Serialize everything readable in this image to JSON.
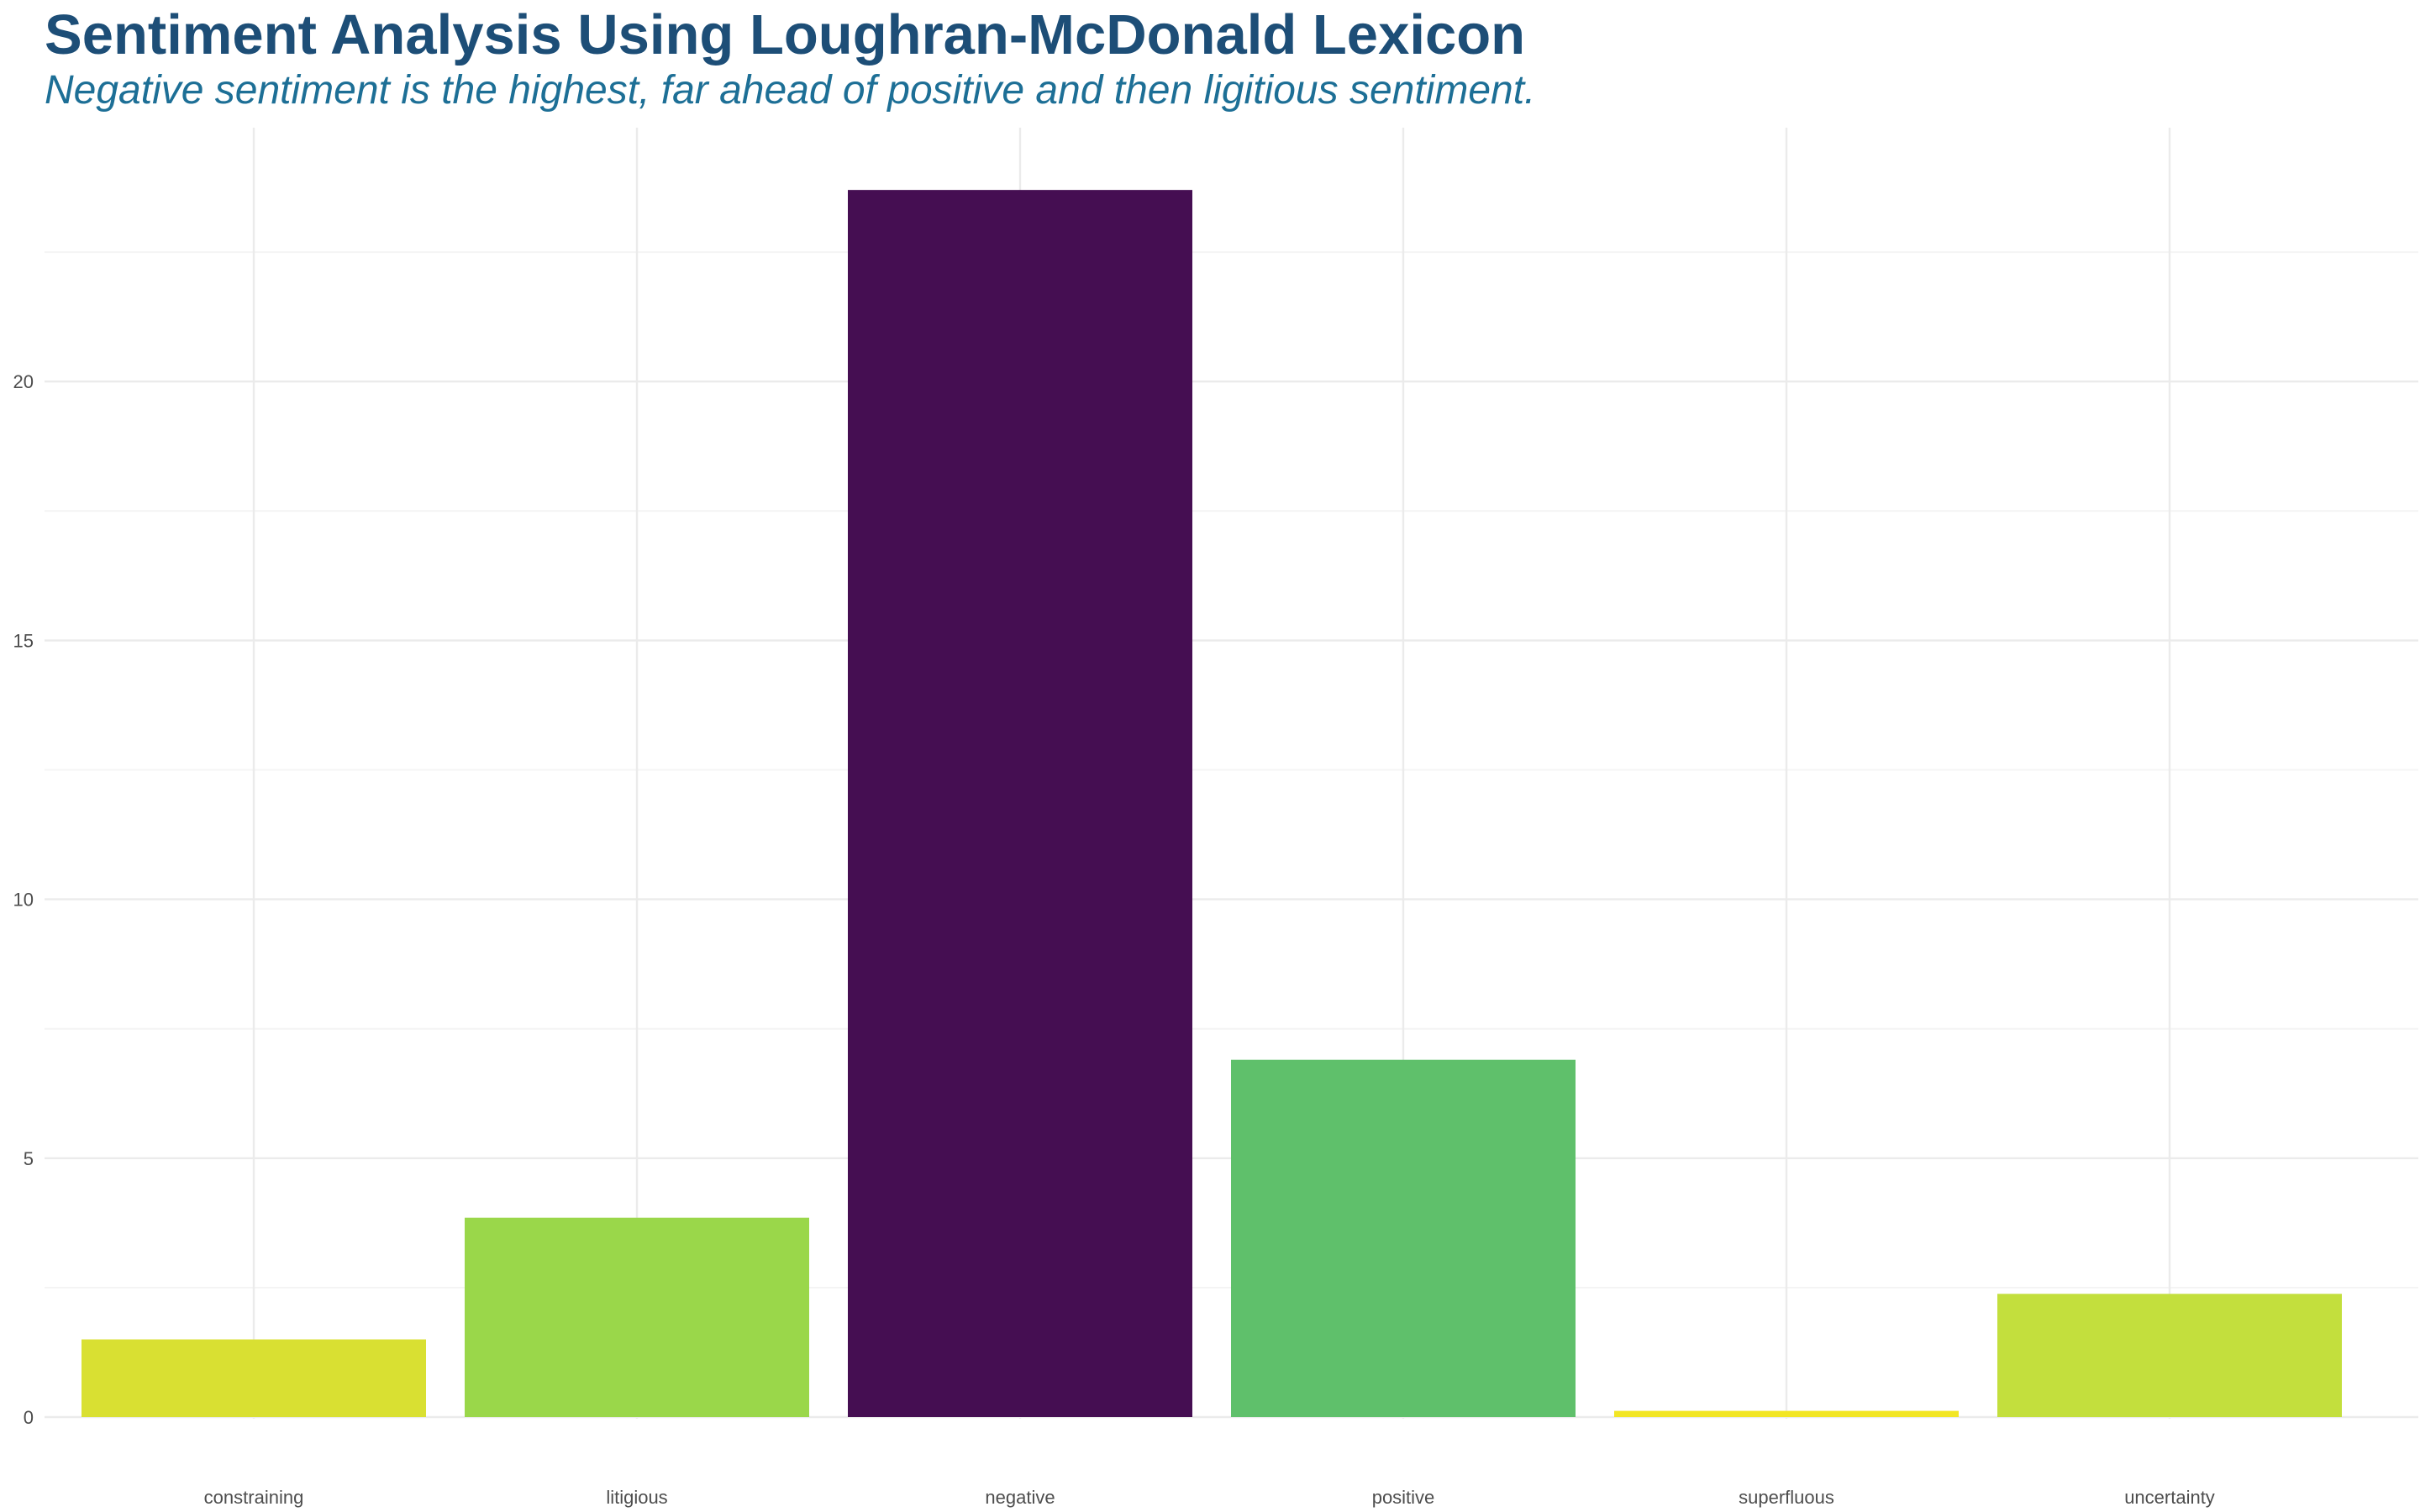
{
  "chart_data": {
    "type": "bar",
    "title": "Sentiment Analysis Using Loughran-McDonald Lexicon",
    "subtitle": "Negative sentiment is the highest, far ahead of positive and then ligitious sentiment.",
    "xlabel": "",
    "ylabel": "",
    "categories": [
      "constraining",
      "litigious",
      "negative",
      "positive",
      "superfluous",
      "uncertainty"
    ],
    "values": [
      1.5,
      3.85,
      23.7,
      6.9,
      0.12,
      2.38
    ],
    "bar_colors": [
      "#d9e032",
      "#9ad74a",
      "#450e52",
      "#5fc06b",
      "#f2e625",
      "#c3df3d"
    ],
    "ylim": [
      0,
      24.3
    ],
    "y_ticks": [
      0,
      5,
      10,
      15,
      20
    ],
    "grid": true,
    "legend": "none"
  },
  "colors": {
    "title": "#1d4e77",
    "subtitle": "#1d6f96",
    "grid_major": "#ebebeb",
    "grid_minor": "#f4f4f4",
    "tick_text": "#4d4d4d"
  }
}
